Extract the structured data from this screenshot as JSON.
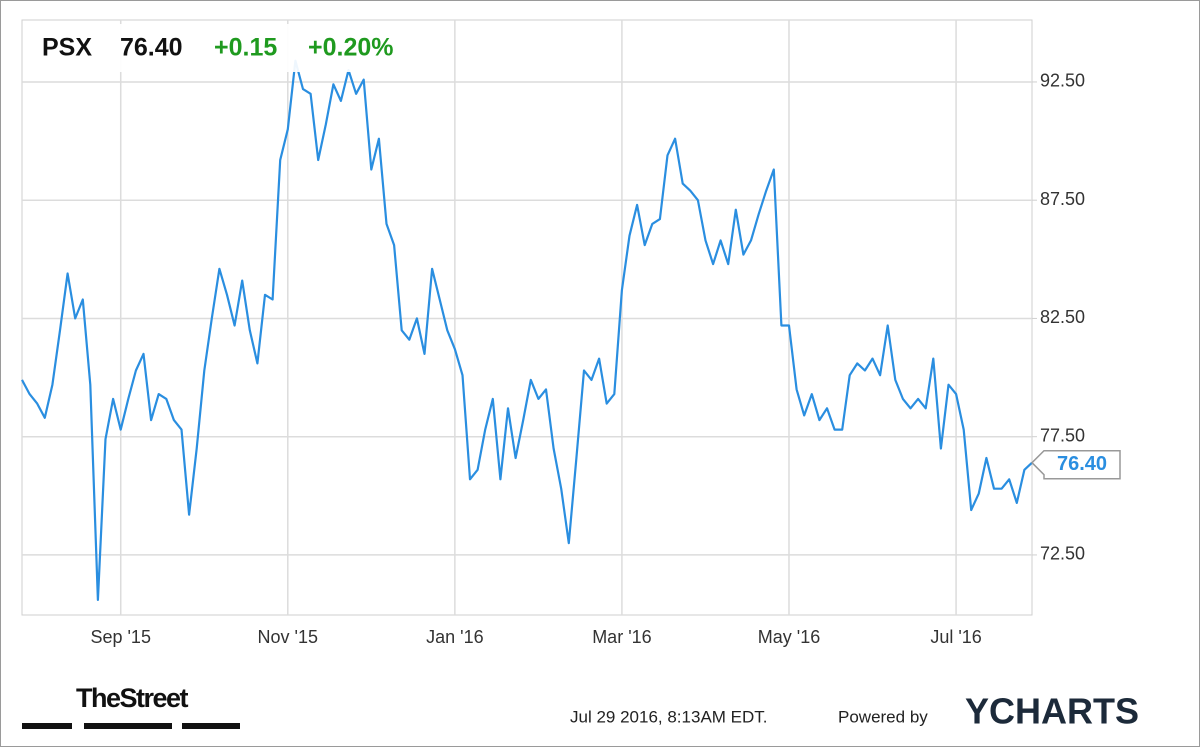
{
  "chart_data": {
    "type": "line",
    "header": {
      "symbol": "PSX",
      "price": "76.40",
      "change": "+0.15",
      "change_pct": "+0.20%"
    },
    "categories": [
      null,
      null,
      null,
      null,
      null,
      null,
      null,
      null,
      null,
      null,
      null,
      null,
      null,
      "Sep '15",
      null,
      null,
      null,
      null,
      null,
      null,
      null,
      null,
      null,
      null,
      null,
      null,
      null,
      null,
      null,
      null,
      null,
      null,
      null,
      null,
      null,
      "Nov '15",
      null,
      null,
      null,
      null,
      null,
      null,
      null,
      null,
      null,
      null,
      null,
      null,
      null,
      null,
      null,
      null,
      null,
      null,
      null,
      null,
      null,
      "Jan '16",
      null,
      null,
      null,
      null,
      null,
      null,
      null,
      null,
      null,
      null,
      null,
      null,
      null,
      null,
      null,
      null,
      null,
      null,
      null,
      null,
      null,
      "Mar '16",
      null,
      null,
      null,
      null,
      null,
      null,
      null,
      null,
      null,
      null,
      null,
      null,
      null,
      null,
      null,
      null,
      null,
      null,
      null,
      null,
      null,
      "May '16",
      null,
      null,
      null,
      null,
      null,
      null,
      null,
      null,
      null,
      null,
      null,
      null,
      null,
      null,
      null,
      null,
      null,
      null,
      null,
      null,
      null,
      "Jul '16",
      null,
      null,
      null,
      null,
      null,
      null,
      null,
      null,
      null,
      null
    ],
    "series": [
      {
        "name": "PSX",
        "color": "#2a8ee0",
        "values": [
          79.9,
          79.3,
          78.9,
          78.3,
          79.7,
          82.0,
          84.4,
          82.5,
          83.3,
          79.7,
          70.6,
          77.4,
          79.1,
          77.8,
          79.1,
          80.3,
          81.0,
          78.2,
          79.3,
          79.1,
          78.2,
          77.8,
          74.2,
          77.0,
          80.3,
          82.5,
          84.6,
          83.5,
          82.2,
          84.1,
          82.0,
          80.6,
          83.5,
          83.3,
          89.2,
          90.5,
          93.4,
          92.2,
          92.0,
          89.2,
          90.7,
          92.4,
          91.7,
          93.0,
          92.0,
          92.6,
          88.8,
          90.1,
          86.5,
          85.6,
          82.0,
          81.6,
          82.5,
          81.0,
          84.6,
          83.3,
          82.0,
          81.2,
          80.1,
          75.7,
          76.1,
          77.8,
          79.1,
          75.7,
          78.7,
          76.6,
          78.2,
          79.9,
          79.1,
          79.5,
          77.0,
          75.3,
          73.0,
          76.6,
          80.3,
          79.9,
          80.8,
          78.9,
          79.3,
          83.7,
          86.0,
          87.3,
          85.6,
          86.5,
          86.7,
          89.4,
          90.1,
          88.2,
          87.9,
          87.5,
          85.8,
          84.8,
          85.8,
          84.8,
          87.1,
          85.2,
          85.8,
          86.9,
          87.9,
          88.8,
          82.2,
          82.2,
          79.5,
          78.4,
          79.3,
          78.2,
          78.7,
          77.8,
          77.8,
          80.1,
          80.6,
          80.3,
          80.8,
          80.1,
          82.2,
          79.9,
          79.1,
          78.7,
          79.1,
          78.7,
          80.8,
          77.0,
          79.7,
          79.3,
          77.8,
          74.4,
          75.1,
          76.6,
          75.3,
          75.3,
          75.7,
          74.7,
          76.1,
          76.4
        ]
      }
    ],
    "ylim": [
      69.96,
      95.12
    ],
    "yticks": [
      {
        "value": 72.5,
        "label": "72.50"
      },
      {
        "value": 77.5,
        "label": "77.50"
      },
      {
        "value": 82.5,
        "label": "82.50"
      },
      {
        "value": 87.5,
        "label": "87.50"
      },
      {
        "value": 92.5,
        "label": "92.50"
      }
    ],
    "grid": true,
    "footer": {
      "brand": "TheStreet",
      "timestamp": "Jul 29 2016, 8:13AM EDT.",
      "powered_by": "Powered by",
      "provider": "YCHARTS"
    }
  }
}
